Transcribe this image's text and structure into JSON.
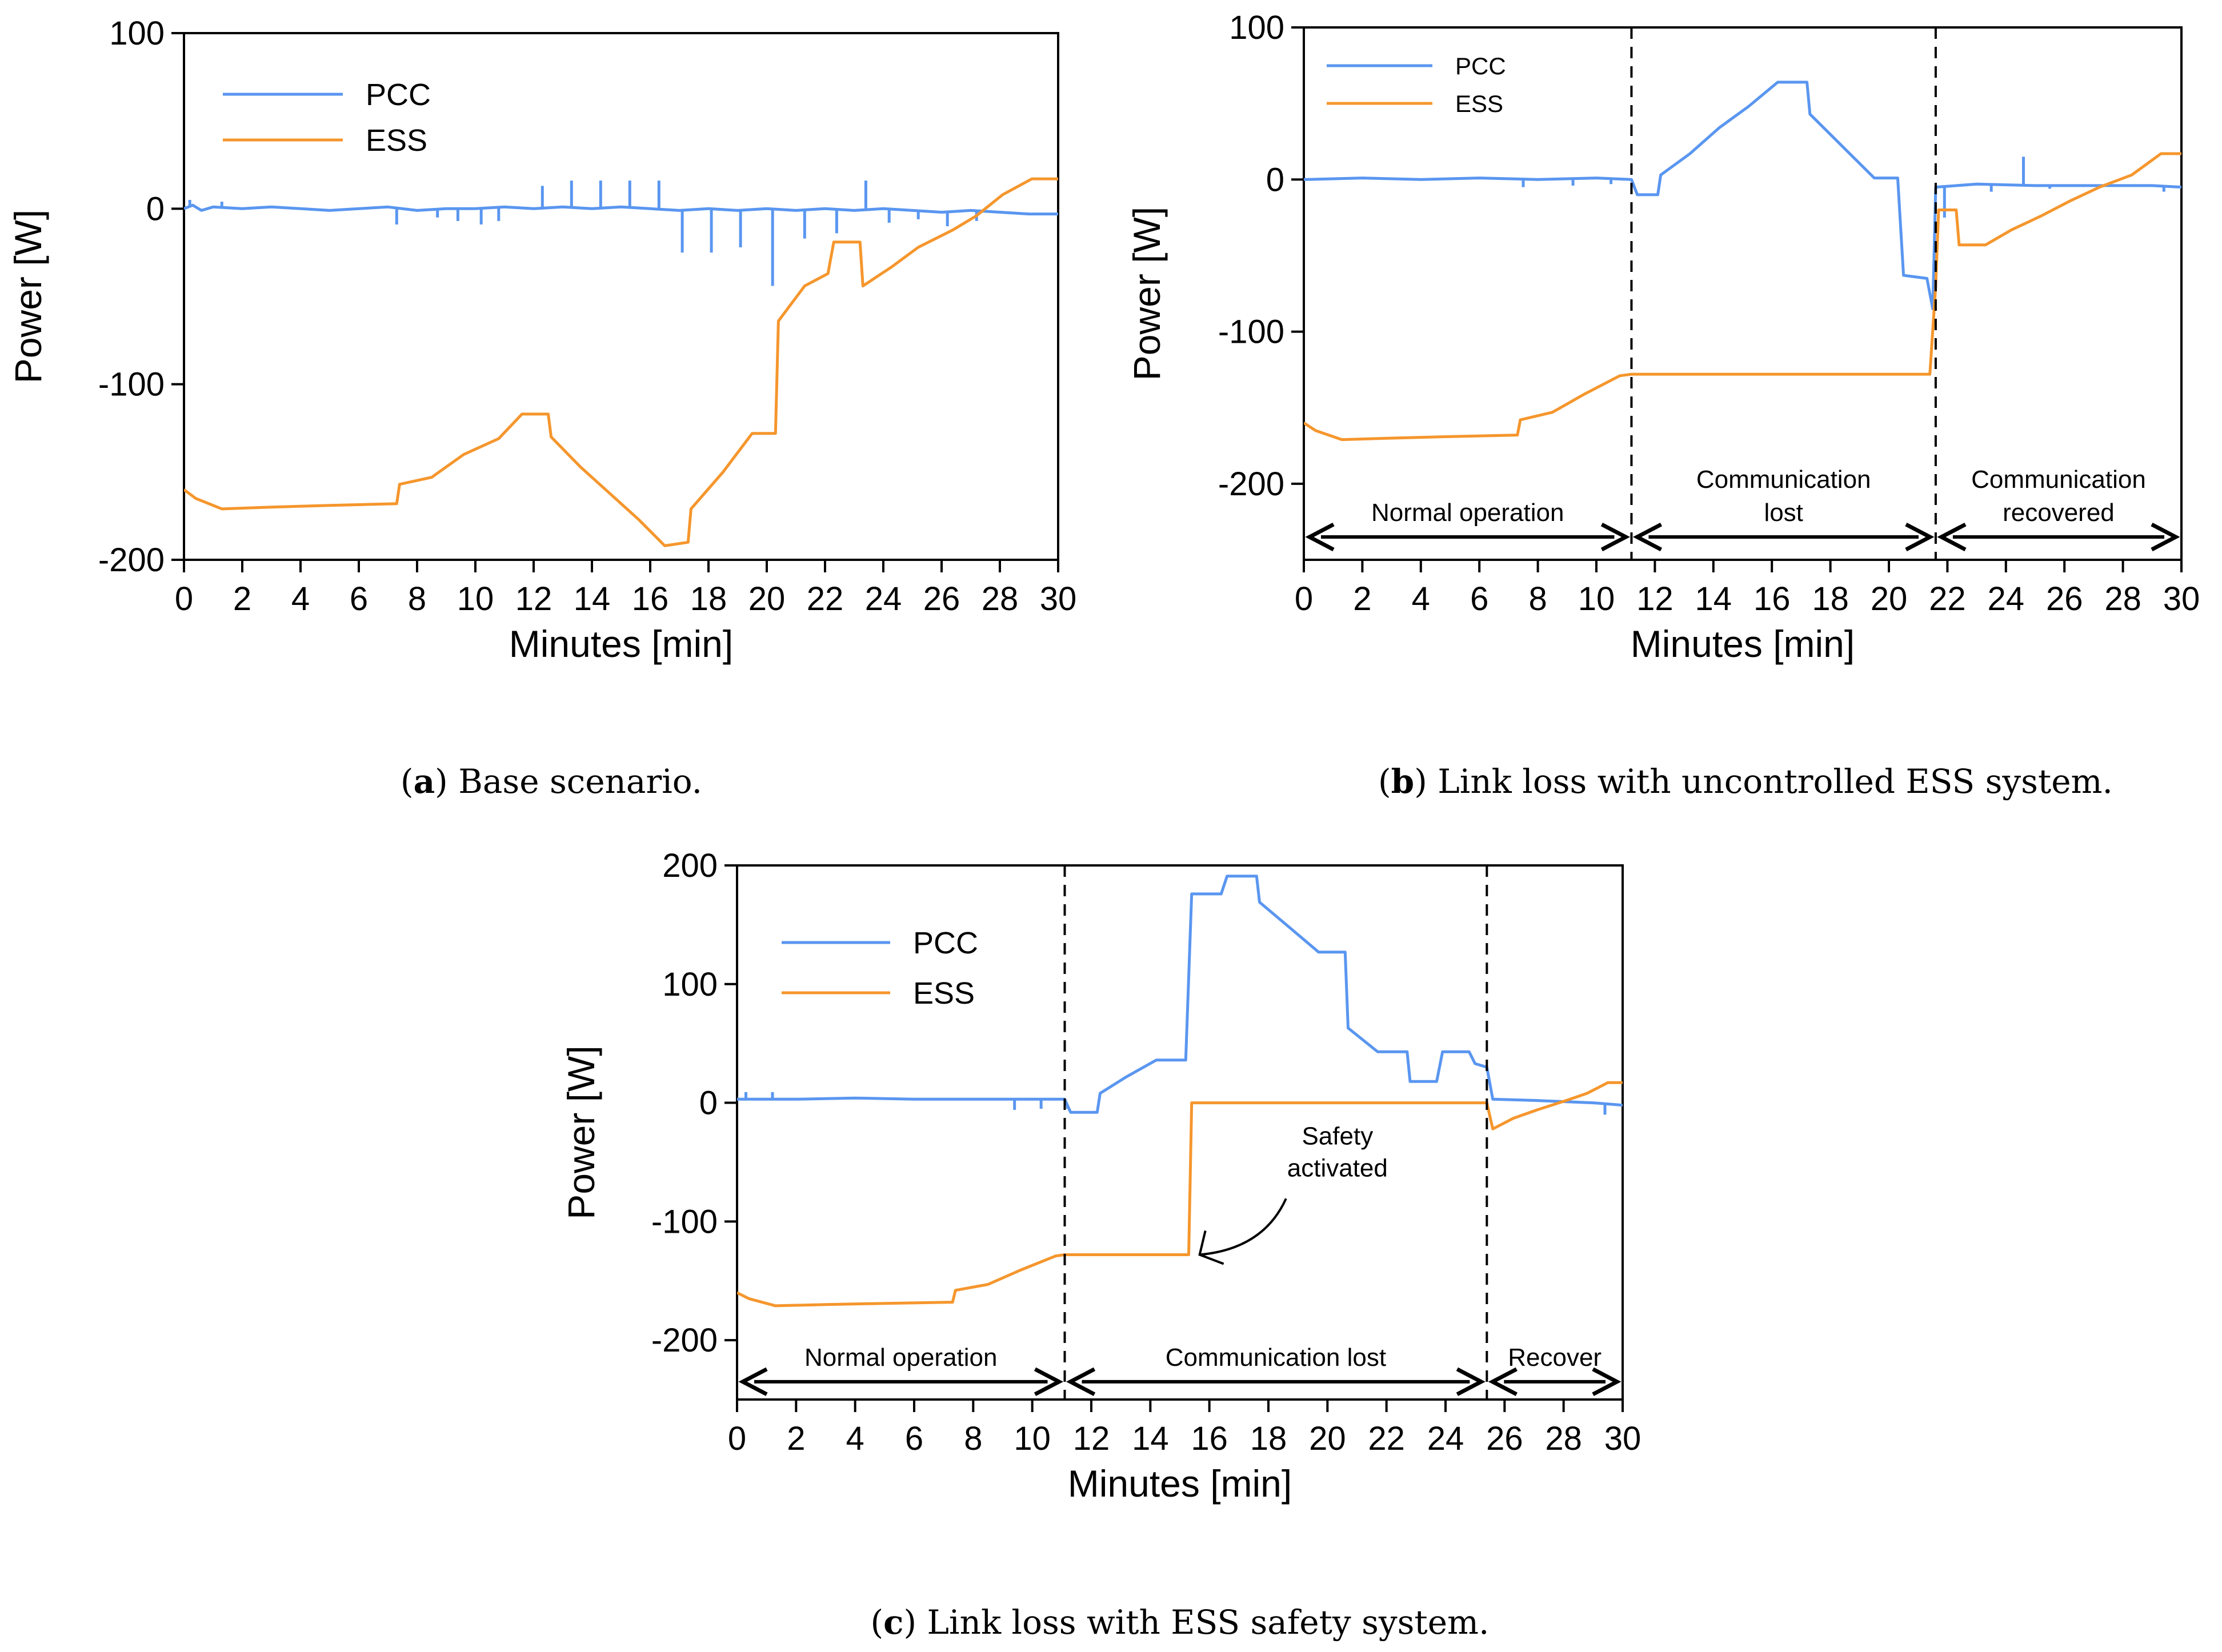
{
  "colors": {
    "pcc": "#5a96f0",
    "ess": "#f5962d",
    "axis": "#000000"
  },
  "chart_data": [
    {
      "id": "a",
      "type": "line",
      "caption": {
        "letter": "a",
        "text": "Base scenario."
      },
      "xlabel": "Minutes [min]",
      "ylabel": "Power [W]",
      "xlim": [
        0,
        30
      ],
      "ylim": [
        -200,
        100
      ],
      "xticks": [
        0,
        2,
        4,
        6,
        8,
        10,
        12,
        14,
        16,
        18,
        20,
        22,
        24,
        26,
        28,
        30
      ],
      "yticks": [
        -200,
        -100,
        0,
        100
      ],
      "ytick_labels": [
        "-200",
        "-100",
        "0",
        "100"
      ],
      "legend": {
        "placement": "top-left",
        "entries": [
          "PCC",
          "ESS"
        ]
      },
      "series": [
        {
          "name": "PCC",
          "points": [
            [
              0,
              0
            ],
            [
              0.3,
              2
            ],
            [
              0.6,
              -1
            ],
            [
              1,
              1
            ],
            [
              2,
              0
            ],
            [
              3,
              1
            ],
            [
              4,
              0
            ],
            [
              5,
              -1
            ],
            [
              6,
              0
            ],
            [
              7,
              1
            ],
            [
              8,
              -1
            ],
            [
              9,
              0
            ],
            [
              10,
              0
            ],
            [
              11,
              1
            ],
            [
              12,
              0
            ],
            [
              13,
              1
            ],
            [
              14,
              0
            ],
            [
              15,
              1
            ],
            [
              16,
              0
            ],
            [
              17,
              -1
            ],
            [
              18,
              0
            ],
            [
              19,
              -1
            ],
            [
              20,
              0
            ],
            [
              21,
              -1
            ],
            [
              22,
              0
            ],
            [
              23,
              -1
            ],
            [
              24,
              0
            ],
            [
              25,
              -1
            ],
            [
              26,
              -2
            ],
            [
              27,
              -1
            ],
            [
              28,
              -2
            ],
            [
              29,
              -3
            ],
            [
              30,
              -3
            ]
          ],
          "spikes": [
            [
              0.2,
              5
            ],
            [
              1.3,
              4
            ],
            [
              7.3,
              -9
            ],
            [
              8.7,
              -5
            ],
            [
              9.4,
              -7
            ],
            [
              10.2,
              -9
            ],
            [
              10.8,
              -7
            ],
            [
              12.3,
              13
            ],
            [
              13.3,
              16
            ],
            [
              14.3,
              16
            ],
            [
              15.3,
              16
            ],
            [
              16.3,
              16
            ],
            [
              17.1,
              -25
            ],
            [
              18.1,
              -25
            ],
            [
              19.1,
              -22
            ],
            [
              20.2,
              -44
            ],
            [
              21.3,
              -17
            ],
            [
              22.4,
              -14
            ],
            [
              23.4,
              16
            ],
            [
              24.2,
              -8
            ],
            [
              25.2,
              -6
            ],
            [
              26.2,
              -10
            ],
            [
              27.2,
              -7
            ]
          ]
        },
        {
          "name": "ESS",
          "points": [
            [
              0,
              -160
            ],
            [
              0.4,
              -165
            ],
            [
              1.3,
              -171
            ],
            [
              3,
              -170
            ],
            [
              5,
              -169
            ],
            [
              7.3,
              -168
            ],
            [
              7.4,
              -157
            ],
            [
              8.5,
              -153
            ],
            [
              9.6,
              -140
            ],
            [
              10.8,
              -131
            ],
            [
              11.6,
              -117
            ],
            [
              12.5,
              -117
            ],
            [
              12.6,
              -130
            ],
            [
              13.6,
              -147
            ],
            [
              14.6,
              -162
            ],
            [
              15.6,
              -177
            ],
            [
              16.5,
              -192
            ],
            [
              17.3,
              -190
            ],
            [
              17.4,
              -171
            ],
            [
              18.5,
              -150
            ],
            [
              19.5,
              -128
            ],
            [
              20.3,
              -128
            ],
            [
              20.4,
              -64
            ],
            [
              21.3,
              -44
            ],
            [
              22.1,
              -37
            ],
            [
              22.3,
              -19
            ],
            [
              23.2,
              -19
            ],
            [
              23.3,
              -44
            ],
            [
              24.3,
              -33
            ],
            [
              25.2,
              -22
            ],
            [
              26.4,
              -12
            ],
            [
              27.2,
              -4
            ],
            [
              28.1,
              8
            ],
            [
              29.1,
              17
            ],
            [
              30,
              17
            ]
          ]
        }
      ]
    },
    {
      "id": "b",
      "type": "line",
      "caption": {
        "letter": "b",
        "text": "Link loss with uncontrolled ESS system."
      },
      "xlabel": "Minutes [min]",
      "ylabel": "Power [W]",
      "xlim": [
        0,
        30
      ],
      "ylim": [
        -250,
        100
      ],
      "xticks": [
        0,
        2,
        4,
        6,
        8,
        10,
        12,
        14,
        16,
        18,
        20,
        22,
        24,
        26,
        28,
        30
      ],
      "yticks": [
        -200,
        -100,
        0,
        100
      ],
      "ytick_labels": [
        "-200",
        "-100",
        "0",
        "100"
      ],
      "legend": {
        "placement": "top-left",
        "entries": [
          "PCC",
          "ESS"
        ]
      },
      "vlines": [
        11.2,
        21.6
      ],
      "regions": [
        {
          "label_lines": [
            "Normal operation"
          ],
          "x_start": 0,
          "x_end": 11.2
        },
        {
          "label_lines": [
            "Communication",
            "lost"
          ],
          "x_start": 11.2,
          "x_end": 21.6
        },
        {
          "label_lines": [
            "Communication",
            "recovered"
          ],
          "x_start": 21.6,
          "x_end": 30
        }
      ],
      "series": [
        {
          "name": "PCC",
          "points": [
            [
              0,
              0
            ],
            [
              2,
              1
            ],
            [
              4,
              0
            ],
            [
              6,
              1
            ],
            [
              8,
              0
            ],
            [
              10,
              1
            ],
            [
              11.2,
              0
            ],
            [
              11.4,
              -10
            ],
            [
              12.1,
              -10
            ],
            [
              12.2,
              3
            ],
            [
              13.2,
              17
            ],
            [
              14.2,
              34
            ],
            [
              15.2,
              48
            ],
            [
              16.2,
              64
            ],
            [
              17.2,
              64
            ],
            [
              17.3,
              43
            ],
            [
              18.4,
              22
            ],
            [
              19.5,
              1
            ],
            [
              20.3,
              1
            ],
            [
              20.5,
              -63
            ],
            [
              21.3,
              -65
            ],
            [
              21.5,
              -85
            ],
            [
              21.6,
              -5
            ],
            [
              23,
              -3
            ],
            [
              25,
              -4
            ],
            [
              27,
              -4
            ],
            [
              29,
              -4
            ],
            [
              30,
              -5
            ]
          ],
          "spikes": [
            [
              7.5,
              -5
            ],
            [
              9.2,
              -4
            ],
            [
              10.5,
              -3
            ],
            [
              21.9,
              -25
            ],
            [
              23.5,
              -8
            ],
            [
              24.6,
              15
            ],
            [
              25.5,
              -6
            ],
            [
              29.4,
              -8
            ]
          ]
        },
        {
          "name": "ESS",
          "points": [
            [
              0,
              -160
            ],
            [
              0.4,
              -165
            ],
            [
              1.3,
              -171
            ],
            [
              3,
              -170
            ],
            [
              5,
              -169
            ],
            [
              7.3,
              -168
            ],
            [
              7.4,
              -158
            ],
            [
              8.5,
              -153
            ],
            [
              9.6,
              -141
            ],
            [
              10.8,
              -129
            ],
            [
              11.2,
              -128
            ],
            [
              15,
              -128
            ],
            [
              18,
              -128
            ],
            [
              21.4,
              -128
            ],
            [
              21.6,
              -70
            ],
            [
              21.7,
              -20
            ],
            [
              22.3,
              -20
            ],
            [
              22.4,
              -43
            ],
            [
              23.3,
              -43
            ],
            [
              24.2,
              -33
            ],
            [
              25.2,
              -24
            ],
            [
              26.2,
              -14
            ],
            [
              27.2,
              -5
            ],
            [
              28.3,
              3
            ],
            [
              29.3,
              17
            ],
            [
              30,
              17
            ]
          ]
        }
      ]
    },
    {
      "id": "c",
      "type": "line",
      "caption": {
        "letter": "c",
        "text": "Link loss with ESS safety system."
      },
      "xlabel": "Minutes [min]",
      "ylabel": "Power [W]",
      "xlim": [
        0,
        30
      ],
      "ylim": [
        -250,
        200
      ],
      "xticks": [
        0,
        2,
        4,
        6,
        8,
        10,
        12,
        14,
        16,
        18,
        20,
        22,
        24,
        26,
        28,
        30
      ],
      "yticks": [
        -200,
        -100,
        0,
        100,
        200
      ],
      "ytick_labels": [
        "-200",
        "-100",
        "0",
        "100",
        "200"
      ],
      "legend": {
        "placement": "top-left",
        "entries": [
          "PCC",
          "ESS"
        ]
      },
      "vlines": [
        11.1,
        25.4
      ],
      "regions": [
        {
          "label_lines": [
            "Normal operation"
          ],
          "x_start": 0,
          "x_end": 11.1
        },
        {
          "label_lines": [
            "Communication lost"
          ],
          "x_start": 11.1,
          "x_end": 25.4
        },
        {
          "label_lines": [
            "Recover"
          ],
          "x_start": 25.4,
          "x_end": 30
        }
      ],
      "annotation": {
        "text_lines": [
          "Safety",
          "activated"
        ],
        "target": [
          15.4,
          -128
        ]
      },
      "series": [
        {
          "name": "PCC",
          "points": [
            [
              0,
              3
            ],
            [
              2,
              3
            ],
            [
              4,
              4
            ],
            [
              6,
              3
            ],
            [
              8,
              3
            ],
            [
              10,
              3
            ],
            [
              11.1,
              3
            ],
            [
              11.3,
              -8
            ],
            [
              12.2,
              -8
            ],
            [
              12.3,
              8
            ],
            [
              13.2,
              22
            ],
            [
              14.2,
              36
            ],
            [
              15.2,
              36
            ],
            [
              15.4,
              176
            ],
            [
              16.4,
              176
            ],
            [
              16.6,
              191
            ],
            [
              17.6,
              191
            ],
            [
              17.7,
              169
            ],
            [
              18.7,
              148
            ],
            [
              19.7,
              127
            ],
            [
              20.6,
              127
            ],
            [
              20.7,
              63
            ],
            [
              21.7,
              43
            ],
            [
              22.7,
              43
            ],
            [
              22.8,
              18
            ],
            [
              23.7,
              18
            ],
            [
              23.9,
              43
            ],
            [
              24.8,
              43
            ],
            [
              25,
              33
            ],
            [
              25.4,
              30
            ],
            [
              25.6,
              3
            ],
            [
              27,
              2
            ],
            [
              29,
              0
            ],
            [
              30,
              -2
            ]
          ],
          "spikes": [
            [
              0.3,
              9
            ],
            [
              1.2,
              9
            ],
            [
              9.4,
              -6
            ],
            [
              10.3,
              -5
            ],
            [
              11.2,
              -5
            ],
            [
              29.4,
              -10
            ]
          ]
        },
        {
          "name": "ESS",
          "points": [
            [
              0,
              -160
            ],
            [
              0.4,
              -165
            ],
            [
              1.3,
              -171
            ],
            [
              3,
              -170
            ],
            [
              5,
              -169
            ],
            [
              7.3,
              -168
            ],
            [
              7.4,
              -158
            ],
            [
              8.5,
              -153
            ],
            [
              9.6,
              -141
            ],
            [
              10.8,
              -129
            ],
            [
              11.1,
              -128
            ],
            [
              13,
              -128
            ],
            [
              15.3,
              -128
            ],
            [
              15.4,
              0
            ],
            [
              18,
              0
            ],
            [
              21,
              0
            ],
            [
              24,
              0
            ],
            [
              25.4,
              0
            ],
            [
              25.6,
              -22
            ],
            [
              26.3,
              -13
            ],
            [
              27.1,
              -6
            ],
            [
              28.1,
              2
            ],
            [
              28.8,
              8
            ],
            [
              29.5,
              17
            ],
            [
              30,
              17
            ]
          ]
        }
      ]
    }
  ]
}
